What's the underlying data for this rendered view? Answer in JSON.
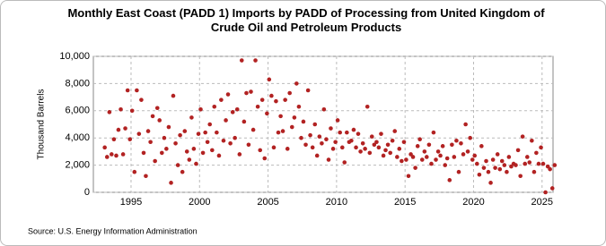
{
  "chart_data": {
    "type": "scatter",
    "title": "Monthly East Coast (PADD 1) Imports by PADD of Processing from United Kingdom of Crude Oil and Petroleum Products",
    "y_label": "Thousand Barrels",
    "source": "Source: U.S. Energy Information Administration",
    "color": "#b22222",
    "grid": true,
    "xlim": [
      1992.25,
      2025.8
    ],
    "xticks": [
      1995,
      2000,
      2005,
      2010,
      2015,
      2020,
      2025
    ],
    "ylim": [
      0,
      10000
    ],
    "yticks": [
      0,
      {
        "value": 2000,
        "label": "2,000"
      },
      {
        "value": 4000,
        "label": "4,000"
      },
      {
        "value": 6000,
        "label": "6,000"
      },
      {
        "value": 8000,
        "label": "8,000"
      },
      {
        "value": 10000,
        "label": "10,000"
      }
    ],
    "series": [
      {
        "name": "Imports",
        "color": "#b22222",
        "x": [
          1993.08,
          1993.25,
          1993.42,
          1993.58,
          1993.75,
          1993.92,
          1994.08,
          1994.25,
          1994.42,
          1994.58,
          1994.75,
          1994.92,
          1995.08,
          1995.25,
          1995.42,
          1995.58,
          1995.75,
          1995.92,
          1996.08,
          1996.25,
          1996.42,
          1996.58,
          1996.75,
          1996.92,
          1997.08,
          1997.25,
          1997.42,
          1997.58,
          1997.75,
          1997.92,
          1998.08,
          1998.25,
          1998.42,
          1998.58,
          1998.75,
          1998.92,
          1999.08,
          1999.25,
          1999.42,
          1999.58,
          1999.75,
          1999.92,
          2000.08,
          2000.25,
          2000.42,
          2000.58,
          2000.75,
          2000.92,
          2001.08,
          2001.25,
          2001.42,
          2001.58,
          2001.75,
          2001.92,
          2002.08,
          2002.25,
          2002.42,
          2002.58,
          2002.75,
          2002.92,
          2003.08,
          2003.25,
          2003.42,
          2003.58,
          2003.75,
          2003.92,
          2004.08,
          2004.25,
          2004.42,
          2004.58,
          2004.75,
          2004.92,
          2005.08,
          2005.25,
          2005.42,
          2005.58,
          2005.75,
          2005.92,
          2006.08,
          2006.25,
          2006.42,
          2006.58,
          2006.75,
          2006.92,
          2007.08,
          2007.25,
          2007.42,
          2007.58,
          2007.75,
          2007.92,
          2008.08,
          2008.25,
          2008.42,
          2008.58,
          2008.75,
          2008.92,
          2009.08,
          2009.25,
          2009.42,
          2009.58,
          2009.75,
          2009.92,
          2010.08,
          2010.25,
          2010.42,
          2010.58,
          2010.75,
          2010.92,
          2011.08,
          2011.25,
          2011.42,
          2011.58,
          2011.75,
          2011.92,
          2012.08,
          2012.25,
          2012.42,
          2012.58,
          2012.75,
          2012.92,
          2013.08,
          2013.25,
          2013.42,
          2013.58,
          2013.75,
          2013.92,
          2014.08,
          2014.25,
          2014.42,
          2014.58,
          2014.75,
          2014.92,
          2015.08,
          2015.25,
          2015.42,
          2015.58,
          2015.75,
          2015.92,
          2016.08,
          2016.25,
          2016.42,
          2016.58,
          2016.75,
          2016.92,
          2017.08,
          2017.25,
          2017.42,
          2017.58,
          2017.75,
          2017.92,
          2018.08,
          2018.25,
          2018.42,
          2018.58,
          2018.75,
          2018.92,
          2019.08,
          2019.25,
          2019.42,
          2019.58,
          2019.75,
          2019.92,
          2020.08,
          2020.25,
          2020.42,
          2020.58,
          2020.75,
          2020.92,
          2021.08,
          2021.25,
          2021.42,
          2021.58,
          2021.75,
          2021.92,
          2022.08,
          2022.25,
          2022.42,
          2022.58,
          2022.75,
          2022.92,
          2023.08,
          2023.25,
          2023.42,
          2023.58,
          2023.75,
          2023.92,
          2024.08,
          2024.25,
          2024.42,
          2024.58,
          2024.75,
          2024.92,
          2025.08,
          2025.25,
          2025.42,
          2025.58,
          2025.75,
          2025.92
        ],
        "values": [
          3300,
          2600,
          5900,
          2800,
          3900,
          2700,
          4600,
          6100,
          2800,
          4700,
          7500,
          3900,
          6000,
          1500,
          7500,
          4300,
          6800,
          2900,
          1200,
          4500,
          3700,
          5600,
          2300,
          6200,
          5300,
          2900,
          4000,
          3200,
          4800,
          700,
          7100,
          3600,
          2000,
          4200,
          1500,
          4500,
          3000,
          2400,
          5500,
          3200,
          2100,
          4300,
          6100,
          2900,
          4400,
          3700,
          5000,
          3100,
          6300,
          4400,
          2700,
          6800,
          3800,
          5300,
          7200,
          3600,
          5900,
          4000,
          6100,
          2800,
          9700,
          5200,
          7300,
          3500,
          7400,
          4600,
          9700,
          6300,
          3100,
          6800,
          2500,
          5800,
          8300,
          7100,
          3300,
          6700,
          4400,
          5600,
          4500,
          6800,
          3200,
          7300,
          4800,
          5500,
          8000,
          6300,
          4000,
          5200,
          3500,
          7500,
          4200,
          3300,
          5000,
          2700,
          4100,
          3600,
          6100,
          3900,
          2400,
          4700,
          3200,
          3700,
          5300,
          4400,
          3300,
          2200,
          4400,
          3700,
          3800,
          4600,
          3300,
          4300,
          3000,
          3600,
          3200,
          6300,
          2900,
          4100,
          3500,
          3700,
          3300,
          4300,
          2700,
          3100,
          3500,
          2900,
          3800,
          4500,
          2600,
          3200,
          2300,
          3700,
          2400,
          1200,
          2800,
          2600,
          1800,
          3400,
          3900,
          2400,
          3000,
          2600,
          3500,
          2100,
          4400,
          2400,
          3000,
          2700,
          3400,
          2000,
          2500,
          900,
          3500,
          2600,
          3800,
          1500,
          3600,
          2800,
          5000,
          3000,
          4000,
          2400,
          2700,
          2100,
          1300,
          3400,
          1800,
          2300,
          1500,
          700,
          2400,
          1800,
          2800,
          1700,
          2300,
          2000,
          1500,
          2600,
          1900,
          2100,
          2000,
          3100,
          1200,
          4100,
          2100,
          2600,
          2200,
          3800,
          1500,
          2900,
          2100,
          3300,
          2100,
          0,
          1900,
          1700,
          300,
          2000
        ]
      }
    ]
  }
}
